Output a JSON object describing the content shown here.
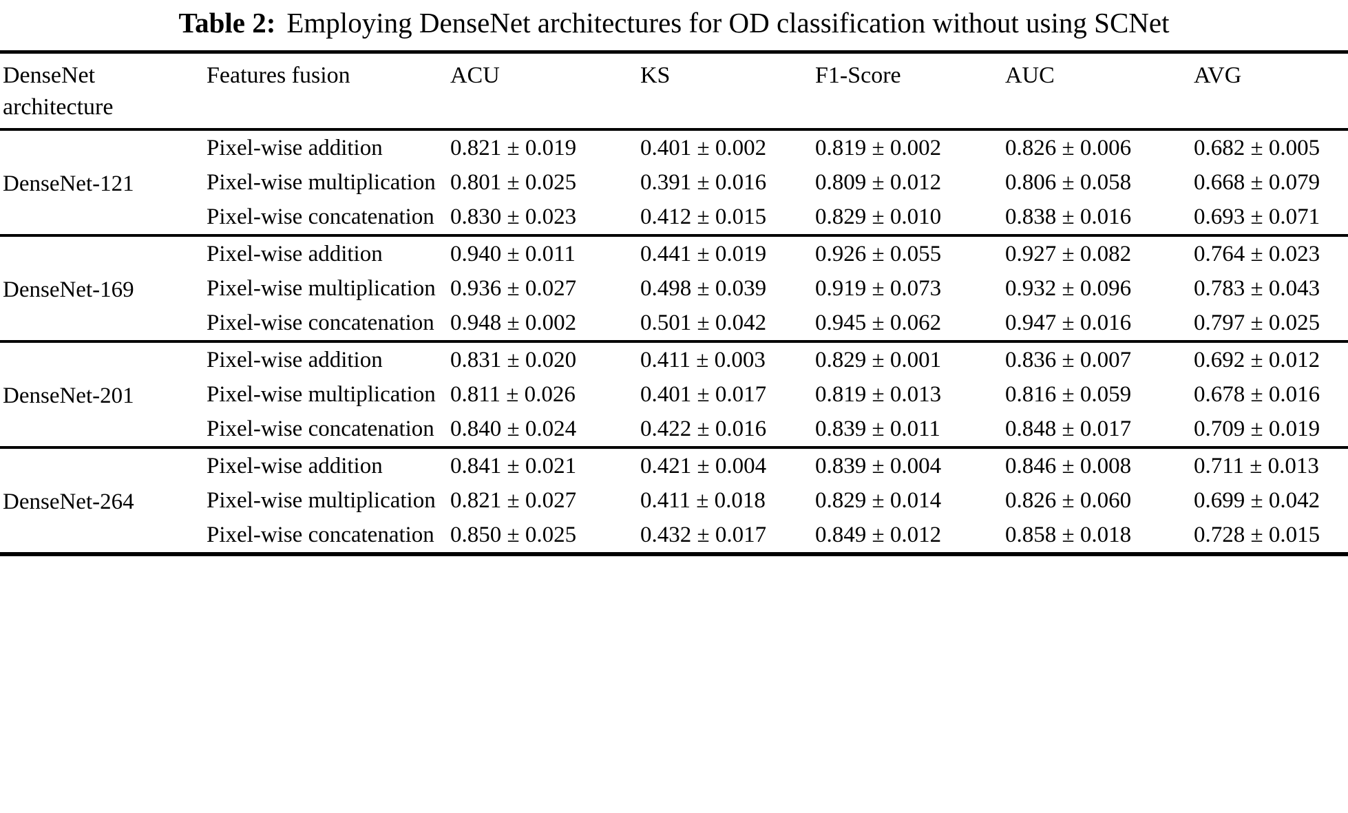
{
  "caption": {
    "label": "Table 2:",
    "text": "Employing DenseNet architectures for OD classification without using SCNet"
  },
  "table": {
    "headers": [
      "DenseNet architecture",
      "Features fusion",
      "ACU",
      "KS",
      "F1-Score",
      "AUC",
      "AVG"
    ],
    "groups": [
      {
        "architecture": "DenseNet-121",
        "rows": [
          {
            "fusion": "Pixel-wise addition",
            "values": [
              "0.821 ± 0.019",
              "0.401 ± 0.002",
              "0.819 ± 0.002",
              "0.826 ± 0.006",
              "0.682 ± 0.005"
            ]
          },
          {
            "fusion": "Pixel-wise multiplication",
            "values": [
              "0.801 ± 0.025",
              "0.391 ± 0.016",
              "0.809 ± 0.012",
              "0.806 ± 0.058",
              "0.668 ± 0.079"
            ]
          },
          {
            "fusion": "Pixel-wise concatenation",
            "values": [
              "0.830 ± 0.023",
              "0.412 ± 0.015",
              "0.829 ± 0.010",
              "0.838 ± 0.016",
              "0.693 ± 0.071"
            ]
          }
        ]
      },
      {
        "architecture": "DenseNet-169",
        "rows": [
          {
            "fusion": "Pixel-wise addition",
            "values": [
              "0.940 ± 0.011",
              "0.441 ± 0.019",
              "0.926 ± 0.055",
              "0.927 ± 0.082",
              "0.764 ± 0.023"
            ]
          },
          {
            "fusion": "Pixel-wise multiplication",
            "values": [
              "0.936 ± 0.027",
              "0.498 ± 0.039",
              "0.919 ± 0.073",
              "0.932 ± 0.096",
              "0.783 ± 0.043"
            ]
          },
          {
            "fusion": "Pixel-wise concatenation",
            "values": [
              "0.948 ± 0.002",
              "0.501 ± 0.042",
              "0.945 ± 0.062",
              "0.947 ± 0.016",
              "0.797 ± 0.025"
            ]
          }
        ]
      },
      {
        "architecture": "DenseNet-201",
        "rows": [
          {
            "fusion": "Pixel-wise addition",
            "values": [
              "0.831 ± 0.020",
              "0.411 ± 0.003",
              "0.829 ± 0.001",
              "0.836 ± 0.007",
              "0.692 ± 0.012"
            ]
          },
          {
            "fusion": "Pixel-wise multiplication",
            "values": [
              "0.811 ± 0.026",
              "0.401 ± 0.017",
              "0.819 ± 0.013",
              "0.816 ± 0.059",
              "0.678 ± 0.016"
            ]
          },
          {
            "fusion": "Pixel-wise concatenation",
            "values": [
              "0.840 ± 0.024",
              "0.422 ± 0.016",
              "0.839 ± 0.011",
              "0.848 ± 0.017",
              "0.709 ± 0.019"
            ]
          }
        ]
      },
      {
        "architecture": "DenseNet-264",
        "rows": [
          {
            "fusion": "Pixel-wise addition",
            "values": [
              "0.841 ± 0.021",
              "0.421 ± 0.004",
              "0.839 ± 0.004",
              "0.846 ± 0.008",
              "0.711 ± 0.013"
            ]
          },
          {
            "fusion": "Pixel-wise multiplication",
            "values": [
              "0.821 ± 0.027",
              "0.411 ± 0.018",
              "0.829 ± 0.014",
              "0.826 ± 0.060",
              "0.699 ± 0.042"
            ]
          },
          {
            "fusion": "Pixel-wise concatenation",
            "values": [
              "0.850 ± 0.025",
              "0.432 ± 0.017",
              "0.849 ± 0.012",
              "0.858 ± 0.018",
              "0.728 ± 0.015"
            ]
          }
        ]
      }
    ]
  }
}
